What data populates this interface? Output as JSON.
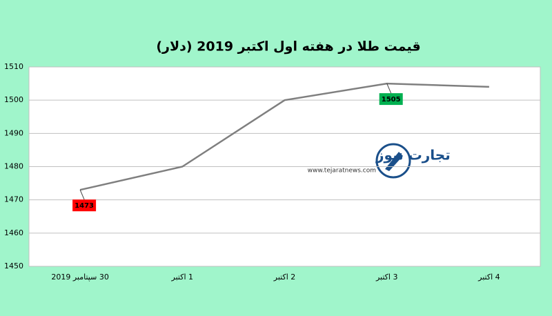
{
  "chart_data": {
    "type": "line",
    "title": "قیمت طلا در هفته اول اکتبر 2019 (دلار)",
    "categories": [
      "30 سپتامبر 2019",
      "1 اکتبر",
      "2 اکتبر",
      "3 اکتبر",
      "4 اکتبر"
    ],
    "values": [
      1473,
      1480,
      1500,
      1505,
      1504
    ],
    "color": "#7f7f7f",
    "ylim": [
      1450,
      1510
    ],
    "yticks": [
      1450,
      1460,
      1470,
      1480,
      1490,
      1500,
      1510
    ],
    "grid": true,
    "data_labels": [
      {
        "index": 0,
        "color": "#ff0000"
      },
      {
        "index": 3,
        "color": "#00b050"
      }
    ],
    "watermark": {
      "name": "تجارت نیوز",
      "url": "www.tejaratnews.com"
    }
  }
}
